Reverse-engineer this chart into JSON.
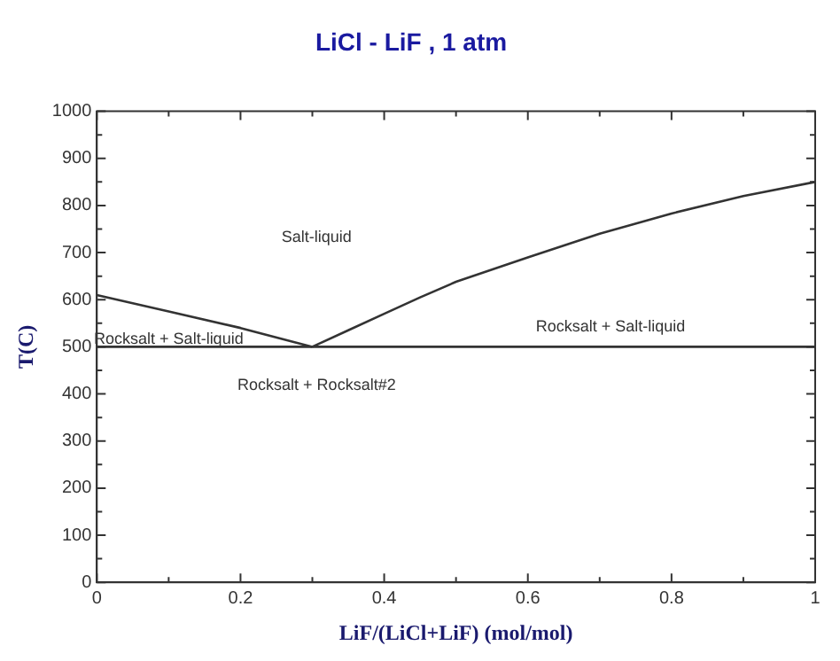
{
  "chart_data": {
    "type": "line",
    "title": "LiCl - LiF , 1 atm",
    "xlabel": "LiF/(LiCl+LiF) (mol/mol)",
    "ylabel": "T(C)",
    "series": [
      {
        "color": "#333333",
        "x": [
          0,
          0.1,
          0.2,
          0.3
        ],
        "values": [
          610,
          575,
          540,
          500
        ]
      },
      {
        "color": "#333333",
        "x": [
          0.3,
          0.35,
          0.4,
          0.45,
          0.5,
          0.6,
          0.7,
          0.8,
          0.9,
          1.0
        ],
        "values": [
          500,
          535,
          570,
          605,
          638,
          690,
          740,
          783,
          820,
          850
        ]
      },
      {
        "color": "#333333",
        "x": [
          0,
          1
        ],
        "values": [
          500,
          500
        ]
      }
    ],
    "xlim": [
      0,
      1
    ],
    "ylim": [
      0,
      1000
    ],
    "xticks": [
      0,
      {
        "value": 0.1,
        "label": null
      },
      0.2,
      {
        "value": 0.3,
        "label": null
      },
      0.4,
      {
        "value": 0.5,
        "label": null
      },
      0.6,
      {
        "value": 0.7,
        "label": null
      },
      0.8,
      {
        "value": 0.9,
        "label": null
      },
      1
    ],
    "yticks": [
      0,
      {
        "value": 50,
        "label": null
      },
      100,
      {
        "value": 150,
        "label": null
      },
      200,
      {
        "value": 250,
        "label": null
      },
      300,
      {
        "value": 350,
        "label": null
      },
      400,
      {
        "value": 450,
        "label": null
      },
      500,
      {
        "value": 550,
        "label": null
      },
      600,
      {
        "value": 650,
        "label": null
      },
      700,
      {
        "value": 750,
        "label": null
      },
      800,
      {
        "value": 850,
        "label": null
      },
      900,
      {
        "value": 950,
        "label": null
      },
      1000
    ],
    "annotations": [
      "Salt-liquid",
      "Rocksalt + Salt-liquid",
      "Rocksalt + Salt-liquid",
      "Rocksalt + Rocksalt#2"
    ],
    "grid": false,
    "legend": false,
    "marker": "none",
    "line_style": "solid"
  }
}
